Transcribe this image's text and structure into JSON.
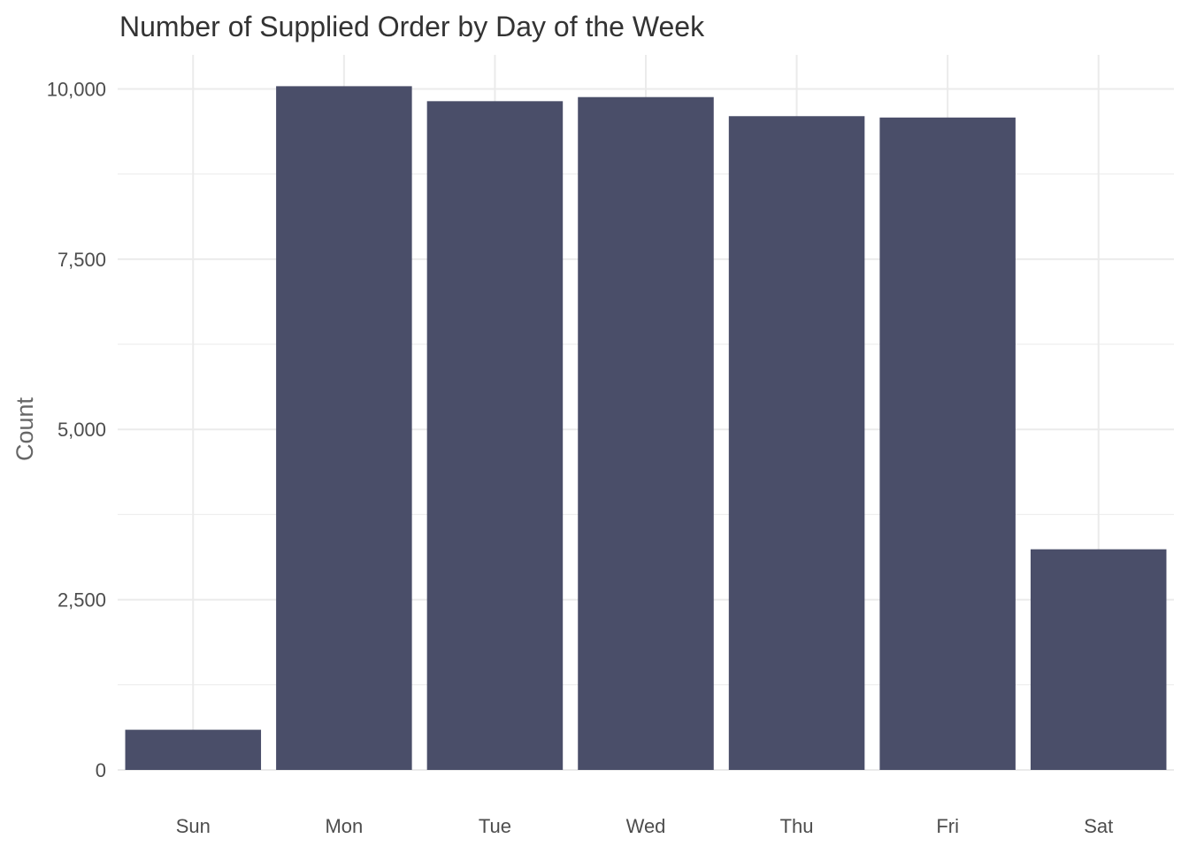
{
  "chart_data": {
    "type": "bar",
    "title": "Number of Supplied Order by Day of the Week",
    "xlabel": "",
    "ylabel": "Count",
    "categories": [
      "Sun",
      "Mon",
      "Tue",
      "Wed",
      "Thu",
      "Fri",
      "Sat"
    ],
    "values": [
      590,
      10040,
      9820,
      9880,
      9600,
      9580,
      3240
    ],
    "ylim": [
      0,
      10500
    ],
    "yticks": [
      0,
      2500,
      5000,
      7500,
      10000
    ],
    "ytick_labels": [
      "0",
      "2,500",
      "5,000",
      "7,500",
      "10,000"
    ],
    "grid": true,
    "legend": "none",
    "bar_color": "#4a4e69",
    "grid_color": "#ebebeb",
    "background": "#ffffff"
  }
}
